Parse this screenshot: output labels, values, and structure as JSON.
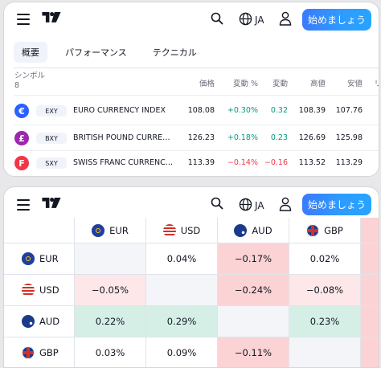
{
  "header": {
    "lang_code": "JA",
    "cta_label": "始めましょう"
  },
  "tabs": [
    {
      "label": "概要",
      "active": true
    },
    {
      "label": "パフォーマンス",
      "active": false
    },
    {
      "label": "テクニカル",
      "active": false
    }
  ],
  "table": {
    "symbol_header": "シンボル",
    "symbol_count": "8",
    "columns": [
      "価格",
      "変動 %",
      "変動",
      "高値",
      "安値",
      "リ"
    ],
    "rows": [
      {
        "flag_letter": "€",
        "flag_color": "#2962ff",
        "ticker": "EXY",
        "name": "EURO CURRENCY INDEX",
        "price": "108.08",
        "chg_pct": "+0.30%",
        "chg": "0.32",
        "high": "108.39",
        "low": "107.76",
        "dir": "pos"
      },
      {
        "flag_letter": "£",
        "flag_color": "#9c27b0",
        "ticker": "BXY",
        "name": "BRITISH POUND CURRENCY INDEX",
        "price": "126.23",
        "chg_pct": "+0.18%",
        "chg": "0.23",
        "high": "126.69",
        "low": "125.98",
        "dir": "pos"
      },
      {
        "flag_letter": "F",
        "flag_color": "#f23645",
        "ticker": "SXY",
        "name": "SWISS FRANC CURRENCY INDEX",
        "price": "113.39",
        "chg_pct": "−0.14%",
        "chg": "−0.16",
        "high": "113.52",
        "low": "113.29",
        "dir": "neg"
      }
    ]
  },
  "heatmap": {
    "columns": [
      {
        "code": "EUR",
        "flag": "eu"
      },
      {
        "code": "USD",
        "flag": "us"
      },
      {
        "code": "AUD",
        "flag": "au"
      },
      {
        "code": "GBP",
        "flag": "gb"
      }
    ],
    "rows": [
      {
        "code": "EUR",
        "flag": "eu",
        "cells": [
          {
            "value": "",
            "tone": "self"
          },
          {
            "value": "0.04%",
            "tone": "white"
          },
          {
            "value": "−0.17%",
            "tone": "red"
          },
          {
            "value": "0.02%",
            "tone": "white"
          },
          {
            "value": "",
            "tone": "edge-red"
          }
        ]
      },
      {
        "code": "USD",
        "flag": "us",
        "cells": [
          {
            "value": "−0.05%",
            "tone": "lred"
          },
          {
            "value": "",
            "tone": "self"
          },
          {
            "value": "−0.24%",
            "tone": "red"
          },
          {
            "value": "−0.08%",
            "tone": "lred"
          },
          {
            "value": "",
            "tone": "edge-red"
          }
        ]
      },
      {
        "code": "AUD",
        "flag": "au",
        "cells": [
          {
            "value": "0.22%",
            "tone": "grn"
          },
          {
            "value": "0.29%",
            "tone": "grn"
          },
          {
            "value": "",
            "tone": "self"
          },
          {
            "value": "0.23%",
            "tone": "grn"
          },
          {
            "value": "",
            "tone": "edge-red"
          }
        ]
      },
      {
        "code": "GBP",
        "flag": "gb",
        "cells": [
          {
            "value": "0.03%",
            "tone": "white"
          },
          {
            "value": "0.09%",
            "tone": "white"
          },
          {
            "value": "−0.11%",
            "tone": "red"
          },
          {
            "value": "",
            "tone": "self"
          },
          {
            "value": "",
            "tone": "edge-red"
          }
        ]
      }
    ]
  },
  "colors": {
    "accent": "#2962ff",
    "positive": "#089981",
    "negative": "#f23645"
  }
}
